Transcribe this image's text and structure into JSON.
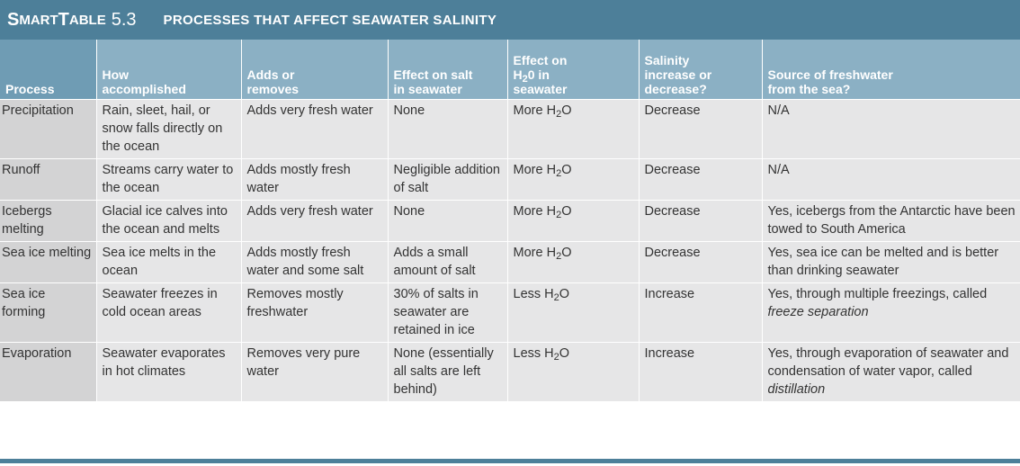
{
  "title_bar": {
    "smart_S": "S",
    "smart_mart": "MART",
    "table_T": "T",
    "table_able": "ABLE",
    "number": "5.3",
    "title": "PROCESSES THAT AFFECT SEAWATER SALINITY"
  },
  "table": {
    "headers": [
      [
        "Process"
      ],
      [
        "How",
        "accomplished"
      ],
      [
        "Adds or",
        "removes"
      ],
      [
        "Effect on salt",
        "in seawater"
      ],
      [
        "Effect on",
        "H2O in",
        "seawater"
      ],
      [
        "Salinity",
        "increase or",
        "decrease?"
      ],
      [
        "Source of freshwater",
        "from the sea?"
      ]
    ],
    "rows": [
      {
        "process": "Precipitation",
        "how": "Rain, sleet, hail, or snow falls directly on the ocean",
        "adds_removes": "Adds very fresh water",
        "effect_salt": "None",
        "effect_h2o": "More H2O",
        "salinity": "Decrease",
        "source": "N/A",
        "source_italic": ""
      },
      {
        "process": "Runoff",
        "how": "Streams carry water to the ocean",
        "adds_removes": "Adds mostly fresh water",
        "effect_salt": "Negligible addition of salt",
        "effect_h2o": "More H2O",
        "salinity": "Decrease",
        "source": "N/A",
        "source_italic": ""
      },
      {
        "process": "Icebergs melting",
        "how": "Glacial ice calves into the ocean and melts",
        "adds_removes": "Adds very fresh water",
        "effect_salt": "None",
        "effect_h2o": "More H2O",
        "salinity": "Decrease",
        "source": "Yes, icebergs from the Antarctic have been towed to South America",
        "source_italic": ""
      },
      {
        "process": "Sea ice melting",
        "how": "Sea ice melts in the ocean",
        "adds_removes": "Adds mostly fresh water and some salt",
        "effect_salt": "Adds a small amount of salt",
        "effect_h2o": "More H2O",
        "salinity": "Decrease",
        "source": "Yes, sea ice can be melted and is better than drinking seawater",
        "source_italic": ""
      },
      {
        "process": "Sea ice forming",
        "how": "Seawater freezes in cold ocean areas",
        "adds_removes": "Removes mostly freshwater",
        "effect_salt": "30% of salts in seawater are retained in ice",
        "effect_h2o": "Less H2O",
        "salinity": "Increase",
        "source": "Yes, through multiple freezings, called ",
        "source_italic": "freeze separation"
      },
      {
        "process": "Evaporation",
        "how": "Seawater evaporates in hot climates",
        "adds_removes": "Removes very pure water",
        "effect_salt": "None (essentially all salts are left behind)",
        "effect_h2o": "Less H2O",
        "salinity": "Increase",
        "source": "Yes, through evaporation of seawater and condensation of water vapor, called ",
        "source_italic": "distillation"
      }
    ]
  },
  "colors": {
    "title_bar": "#4d7f99",
    "header": "#8bb0c4",
    "header_first": "#6f9cb4",
    "cell": "#e6e6e7",
    "cell_first": "#d3d3d4"
  }
}
